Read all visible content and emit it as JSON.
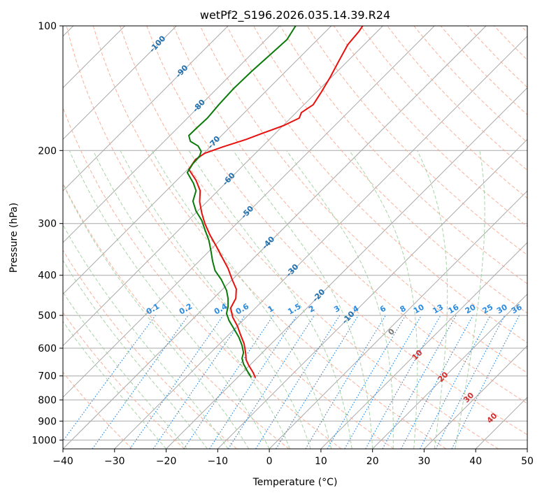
{
  "chart_data": {
    "type": "line",
    "subtype": "skew-t log-p diagram",
    "title": "wetPf2_S196.2026.035.14.39.R24",
    "xlabel": "Temperature (°C)",
    "ylabel": "Pressure (hPa)",
    "xlim": [
      -40,
      50
    ],
    "ylim": [
      1050,
      100
    ],
    "x_ticks": [
      "−40",
      "−30",
      "−20",
      "−10",
      "0",
      "10",
      "20",
      "30",
      "40",
      "50"
    ],
    "y_ticks": [
      "1000",
      "900",
      "800",
      "700",
      "600",
      "500",
      "400",
      "300",
      "200",
      "100"
    ],
    "y_tick_values": [
      1000,
      900,
      800,
      700,
      600,
      500,
      400,
      300,
      200,
      100
    ],
    "x_tick_values": [
      -40,
      -30,
      -20,
      -10,
      0,
      10,
      20,
      30,
      40,
      50
    ],
    "colors": {
      "temperature": "#e8100c",
      "dewpoint": "#0a7a0a",
      "isotherm": "#a8a8a8",
      "dry_adiabat": "#f7a98e",
      "moist_adiabat": "#9fce9f",
      "mixing_ratio": "#2b8be0",
      "isotherm_label": "#1f6fae",
      "lcl_label": "#d42f2f",
      "zero_label": "#777777"
    },
    "series": [
      {
        "name": "Temperature",
        "color": "#e8100c",
        "points": [
          [
            -2.7,
            706
          ],
          [
            -3.2,
            685
          ],
          [
            -4.0,
            660
          ],
          [
            -4.5,
            640
          ],
          [
            -4.6,
            615
          ],
          [
            -4.9,
            585
          ],
          [
            -5.5,
            560
          ],
          [
            -6.2,
            530
          ],
          [
            -7.1,
            505
          ],
          [
            -7.5,
            480
          ],
          [
            -6.5,
            455
          ],
          [
            -6.4,
            432
          ],
          [
            -7.2,
            410
          ],
          [
            -8.0,
            385
          ],
          [
            -9.0,
            365
          ],
          [
            -10.3,
            340
          ],
          [
            -11.5,
            320
          ],
          [
            -12.5,
            300
          ],
          [
            -13.1,
            283
          ],
          [
            -13.5,
            266
          ],
          [
            -13.4,
            250
          ],
          [
            -14.2,
            236
          ],
          [
            -15.6,
            222
          ],
          [
            -14.3,
            210
          ],
          [
            -12.5,
            203
          ],
          [
            -9.0,
            196
          ],
          [
            -4.5,
            188
          ],
          [
            -1.0,
            181
          ],
          [
            2.8,
            174
          ],
          [
            5.8,
            167
          ],
          [
            6.2,
            162
          ],
          [
            8.5,
            155
          ],
          [
            10.0,
            145
          ],
          [
            11.8,
            133
          ],
          [
            13.4,
            122
          ],
          [
            15.2,
            111
          ],
          [
            17.4,
            103
          ],
          [
            18.1,
            100
          ]
        ]
      },
      {
        "name": "Dewpoint",
        "color": "#0a7a0a",
        "points": [
          [
            -3.5,
            706
          ],
          [
            -4.3,
            680
          ],
          [
            -5.0,
            655
          ],
          [
            -5.3,
            635
          ],
          [
            -5.0,
            615
          ],
          [
            -5.3,
            590
          ],
          [
            -5.9,
            565
          ],
          [
            -6.8,
            540
          ],
          [
            -7.8,
            515
          ],
          [
            -8.3,
            495
          ],
          [
            -8.0,
            475
          ],
          [
            -8.0,
            455
          ],
          [
            -8.3,
            435
          ],
          [
            -9.3,
            410
          ],
          [
            -10.5,
            390
          ],
          [
            -11.0,
            370
          ],
          [
            -11.3,
            350
          ],
          [
            -11.7,
            330
          ],
          [
            -12.5,
            310
          ],
          [
            -13.1,
            295
          ],
          [
            -14.2,
            280
          ],
          [
            -14.8,
            265
          ],
          [
            -14.2,
            250
          ],
          [
            -14.7,
            240
          ],
          [
            -15.9,
            226
          ],
          [
            -14.8,
            215
          ],
          [
            -13.5,
            206
          ],
          [
            -13.2,
            201
          ],
          [
            -13.8,
            195
          ],
          [
            -15.3,
            190
          ],
          [
            -15.6,
            184
          ],
          [
            -14.0,
            176
          ],
          [
            -12.0,
            167
          ],
          [
            -9.8,
            155
          ],
          [
            -7.0,
            142
          ],
          [
            -3.5,
            129
          ],
          [
            0.3,
            117
          ],
          [
            3.4,
            108
          ],
          [
            5.1,
            100
          ]
        ]
      }
    ],
    "isotherm_labels": [
      "-100",
      "-90",
      "-80",
      "-70",
      "-60",
      "-50",
      "-40",
      "-30",
      "-20",
      "-10"
    ],
    "isotherm_label_values": [
      -100,
      -90,
      -80,
      -70,
      -60,
      -50,
      -40,
      -30,
      -20,
      -10
    ],
    "mixing_ratio_labels": [
      "0.1",
      "0.2",
      "0.4",
      "0.6",
      "1",
      "1.5",
      "2",
      "3",
      "4",
      "6",
      "8",
      "10",
      "13",
      "16",
      "20",
      "25",
      "30",
      "36"
    ],
    "mixing_ratio_values": [
      0.1,
      0.2,
      0.4,
      0.6,
      1,
      1.5,
      2,
      3,
      4,
      6,
      8,
      10,
      13,
      16,
      20,
      25,
      30,
      36
    ],
    "adiabat_labels": [
      "0",
      "10",
      "20",
      "30",
      "40"
    ],
    "adiabat_label_values": [
      0,
      10,
      20,
      30,
      40
    ]
  }
}
